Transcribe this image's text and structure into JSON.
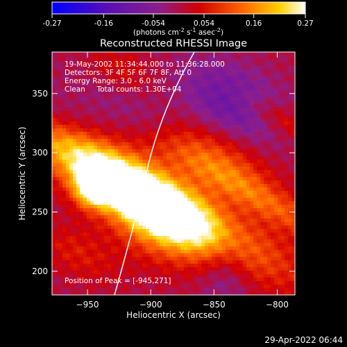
{
  "chart_data": {
    "type": "heatmap",
    "title": "Reconstructed RHESSI Image",
    "xlabel": "Heliocentric X (arcsec)",
    "ylabel": "Heliocentric Y (arcsec)",
    "xlim": [
      -978,
      -786
    ],
    "ylim": [
      180,
      385
    ],
    "x_ticks": [
      -950,
      -900,
      -850,
      -800
    ],
    "y_ticks": [
      200,
      250,
      300,
      350
    ],
    "colorbar": {
      "ticks": [
        -0.27,
        -0.16,
        -0.054,
        0.054,
        0.16,
        0.27
      ],
      "tick_labels": [
        "-0.27",
        "-0.16",
        "-0.054",
        "0.054",
        "0.16",
        "0.27"
      ],
      "range": [
        -0.27,
        0.27
      ],
      "unit_label": "(photons cm",
      "unit_exp1": "-2",
      "unit_mid": " s",
      "unit_exp2": "-1",
      "unit_tail": " asec",
      "unit_exp3": "-2",
      "unit_close": ")"
    },
    "annotations": [
      "19-May-2002 11:34:44.000 to 11:36:28.000",
      "Detectors: 3F 4F 5F 6F 7F 8F, Att 0",
      "Energy Range: 3.0 - 6.0 keV",
      "Clean     Total counts: 1.30E+04"
    ],
    "peak_label": "Position of Peak = [-945,271]",
    "peak": [
      -945,
      271
    ],
    "colors": [
      "#0000ff",
      "#5a0fb4",
      "#8c1e8c",
      "#d20000",
      "#ff6400",
      "#ffd200",
      "#ffffff"
    ]
  },
  "footer": {
    "timestamp": "29-Apr-2022 06:44"
  }
}
